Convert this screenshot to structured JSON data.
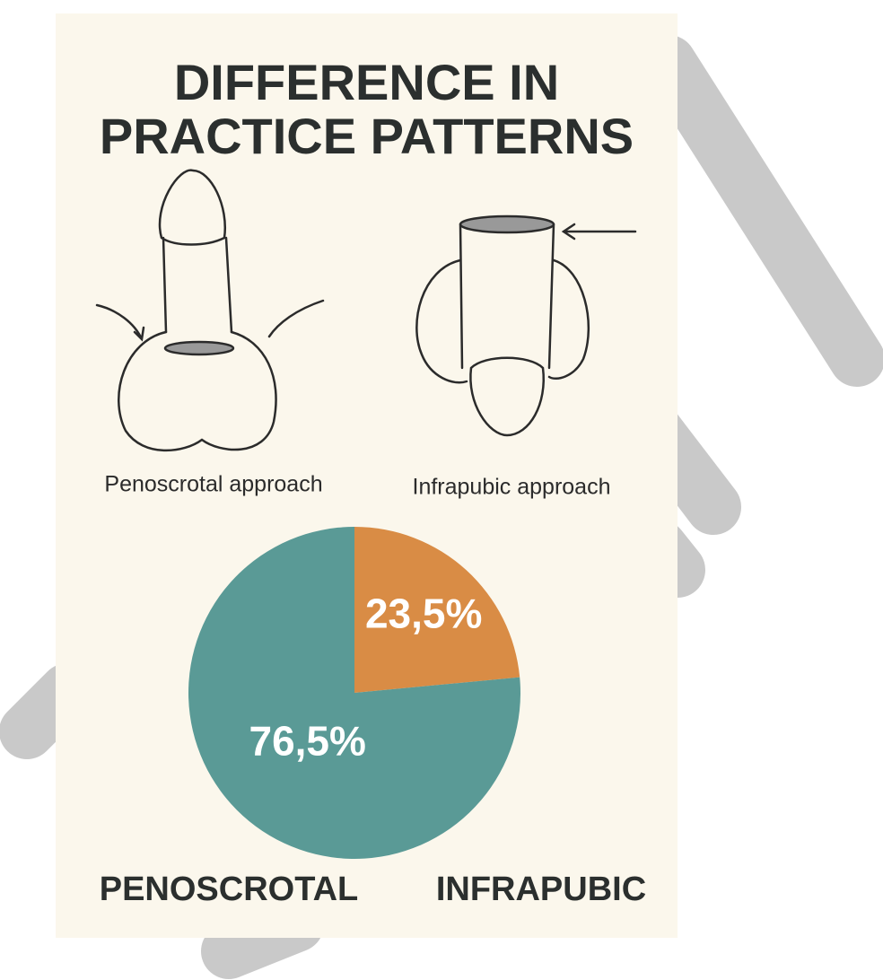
{
  "chart_data": {
    "type": "pie",
    "title": "DIFFERENCE IN PRACTICE PATTERNS",
    "illustration_captions": [
      "Penoscrotal approach",
      "Infrapubic approach"
    ],
    "categories": [
      "PENOSCROTAL",
      "INFRAPUBIC"
    ],
    "values": [
      76.5,
      23.5
    ],
    "value_labels": [
      "76,5%",
      "23,5%"
    ],
    "colors": [
      "#5a9a96",
      "#d98c45"
    ]
  }
}
